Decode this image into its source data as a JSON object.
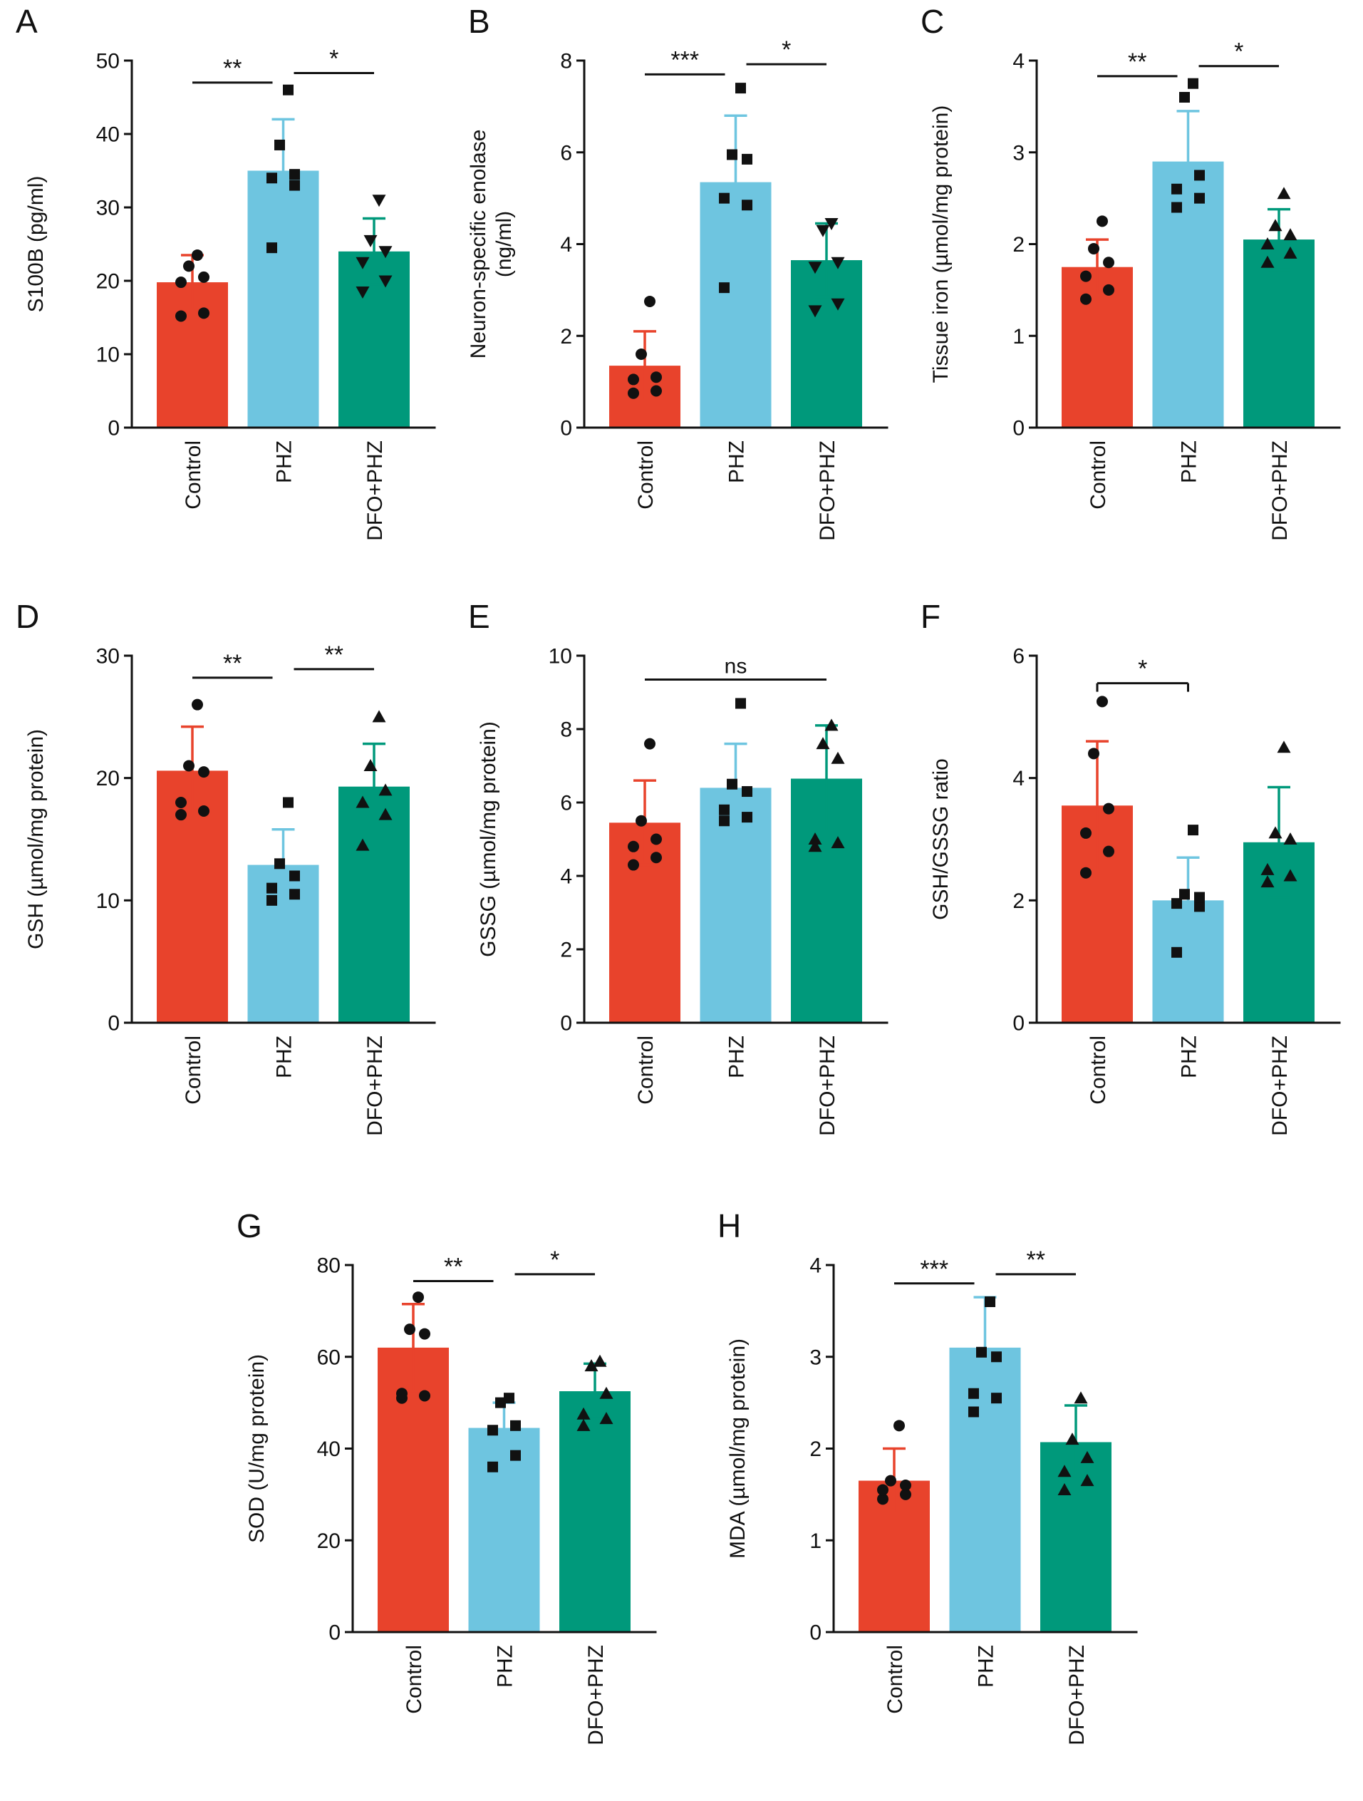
{
  "figure": {
    "background": "#ffffff"
  },
  "colors": {
    "axis": "#111111",
    "points": "#111111",
    "control": "#E8432C",
    "phz": "#6EC5E0",
    "dfo_phz": "#00997B"
  },
  "chart_data": [
    {
      "letter": "A",
      "type": "bar",
      "ylabel_lines": [
        "S100B (pg/ml)"
      ],
      "ylim": [
        0,
        50
      ],
      "yticks": [
        0,
        10,
        20,
        30,
        40,
        50
      ],
      "categories": [
        "Control",
        "PHZ",
        "DFO+PHZ"
      ],
      "group_colors": [
        "#E8432C",
        "#6EC5E0",
        "#00997B"
      ],
      "group_markers": [
        "circle",
        "square",
        "triangle-down"
      ],
      "means": [
        19.8,
        35,
        24
      ],
      "sd": [
        3.7,
        7,
        4.5
      ],
      "points": [
        [
          15.2,
          15.6,
          19.8,
          20.5,
          22,
          23.5
        ],
        [
          24.5,
          33,
          34,
          34.5,
          38.5,
          46
        ],
        [
          18.5,
          20,
          22.5,
          24,
          25.5,
          31
        ]
      ],
      "significance": [
        {
          "from": 0,
          "to": 1,
          "label": "**",
          "y": 47
        },
        {
          "from": 1,
          "to": 2,
          "label": "*",
          "y": 48.3
        }
      ]
    },
    {
      "letter": "B",
      "type": "bar",
      "ylabel_lines": [
        "Neuron-specific enolase",
        "(ng/ml)"
      ],
      "ylim": [
        0,
        8
      ],
      "yticks": [
        0,
        2,
        4,
        6,
        8
      ],
      "categories": [
        "Control",
        "PHZ",
        "DFO+PHZ"
      ],
      "group_colors": [
        "#E8432C",
        "#6EC5E0",
        "#00997B"
      ],
      "group_markers": [
        "circle",
        "square",
        "triangle-down"
      ],
      "means": [
        1.35,
        5.35,
        3.65
      ],
      "sd": [
        0.75,
        1.45,
        0.8
      ],
      "points": [
        [
          0.75,
          0.8,
          1.05,
          1.1,
          1.6,
          2.75
        ],
        [
          3.05,
          4.85,
          5.0,
          5.85,
          5.95,
          7.4
        ],
        [
          2.55,
          2.7,
          3.5,
          3.6,
          4.3,
          4.45
        ]
      ],
      "significance": [
        {
          "from": 0,
          "to": 1,
          "label": "***",
          "y": 7.7
        },
        {
          "from": 1,
          "to": 2,
          "label": "*",
          "y": 7.92
        }
      ]
    },
    {
      "letter": "C",
      "type": "bar",
      "ylabel_lines": [
        "Tissue iron (µmol/mg protein)"
      ],
      "ylim": [
        0,
        4
      ],
      "yticks": [
        0,
        1,
        2,
        3,
        4
      ],
      "categories": [
        "Control",
        "PHZ",
        "DFO+PHZ"
      ],
      "group_colors": [
        "#E8432C",
        "#6EC5E0",
        "#00997B"
      ],
      "group_markers": [
        "circle",
        "square",
        "triangle-up"
      ],
      "means": [
        1.75,
        2.9,
        2.05
      ],
      "sd": [
        0.3,
        0.55,
        0.33
      ],
      "points": [
        [
          1.4,
          1.5,
          1.65,
          1.8,
          1.95,
          2.25
        ],
        [
          2.4,
          2.5,
          2.6,
          2.75,
          3.6,
          3.75
        ],
        [
          1.8,
          1.9,
          2.0,
          2.1,
          2.2,
          2.55
        ]
      ],
      "significance": [
        {
          "from": 0,
          "to": 1,
          "label": "**",
          "y": 3.83
        },
        {
          "from": 1,
          "to": 2,
          "label": "*",
          "y": 3.94
        }
      ]
    },
    {
      "letter": "D",
      "type": "bar",
      "ylabel_lines": [
        "GSH (µmol/mg protein)"
      ],
      "ylim": [
        0,
        30
      ],
      "yticks": [
        0,
        10,
        20,
        30
      ],
      "categories": [
        "Control",
        "PHZ",
        "DFO+PHZ"
      ],
      "group_colors": [
        "#E8432C",
        "#6EC5E0",
        "#00997B"
      ],
      "group_markers": [
        "circle",
        "square",
        "triangle-up"
      ],
      "means": [
        20.6,
        12.9,
        19.3
      ],
      "sd": [
        3.6,
        2.9,
        3.5
      ],
      "points": [
        [
          17,
          17.3,
          18,
          20.5,
          21,
          26
        ],
        [
          10,
          10.5,
          11,
          12,
          13,
          18
        ],
        [
          14.5,
          17,
          18,
          19,
          21,
          25
        ]
      ],
      "significance": [
        {
          "from": 0,
          "to": 1,
          "label": "**",
          "y": 28.2
        },
        {
          "from": 1,
          "to": 2,
          "label": "**",
          "y": 28.9
        }
      ]
    },
    {
      "letter": "E",
      "type": "bar",
      "ylabel_lines": [
        "GSSG (µmol/mg protein)"
      ],
      "ylim": [
        0,
        10
      ],
      "yticks": [
        0,
        2,
        4,
        6,
        8,
        10
      ],
      "categories": [
        "Control",
        "PHZ",
        "DFO+PHZ"
      ],
      "group_colors": [
        "#E8432C",
        "#6EC5E0",
        "#00997B"
      ],
      "group_markers": [
        "circle",
        "square",
        "triangle-up"
      ],
      "means": [
        5.45,
        6.4,
        6.65
      ],
      "sd": [
        1.15,
        1.2,
        1.45
      ],
      "points": [
        [
          4.3,
          4.5,
          4.8,
          5.0,
          5.5,
          7.6
        ],
        [
          5.5,
          5.6,
          5.8,
          6.3,
          6.5,
          8.7
        ],
        [
          4.8,
          4.9,
          5.0,
          7.2,
          7.6,
          8.1
        ]
      ],
      "significance": [
        {
          "from": 0,
          "to": 2,
          "label": "ns",
          "y": 9.35
        }
      ]
    },
    {
      "letter": "F",
      "type": "bar",
      "ylabel_lines": [
        "GSH/GSSG ratio"
      ],
      "ylim": [
        0,
        6
      ],
      "yticks": [
        0,
        2,
        4,
        6
      ],
      "categories": [
        "Control",
        "PHZ",
        "DFO+PHZ"
      ],
      "group_colors": [
        "#E8432C",
        "#6EC5E0",
        "#00997B"
      ],
      "group_markers": [
        "circle",
        "square",
        "triangle-up"
      ],
      "means": [
        3.55,
        2.0,
        2.95
      ],
      "sd": [
        1.05,
        0.7,
        0.9
      ],
      "points": [
        [
          2.45,
          2.8,
          3.1,
          3.5,
          4.4,
          5.25
        ],
        [
          1.15,
          1.9,
          1.95,
          2.05,
          2.1,
          3.15
        ],
        [
          2.3,
          2.4,
          2.5,
          3.0,
          3.1,
          4.5
        ]
      ],
      "significance": [
        {
          "from": 0,
          "to": 1,
          "label": "*",
          "y": 5.55,
          "drop": 12
        }
      ]
    },
    {
      "letter": "G",
      "type": "bar",
      "ylabel_lines": [
        "SOD (U/mg protein)"
      ],
      "ylim": [
        0,
        80
      ],
      "yticks": [
        0,
        20,
        40,
        60,
        80
      ],
      "categories": [
        "Control",
        "PHZ",
        "DFO+PHZ"
      ],
      "group_colors": [
        "#E8432C",
        "#6EC5E0",
        "#00997B"
      ],
      "group_markers": [
        "circle",
        "square",
        "triangle-up"
      ],
      "means": [
        62,
        44.5,
        52.5
      ],
      "sd": [
        9.5,
        5.5,
        6
      ],
      "points": [
        [
          51,
          51.5,
          52,
          65,
          66,
          73
        ],
        [
          36,
          38.5,
          44,
          45,
          50,
          51
        ],
        [
          45,
          46.5,
          47.5,
          52,
          58,
          59
        ]
      ],
      "significance": [
        {
          "from": 0,
          "to": 1,
          "label": "**",
          "y": 76.5
        },
        {
          "from": 1,
          "to": 2,
          "label": "*",
          "y": 78
        }
      ]
    },
    {
      "letter": "H",
      "type": "bar",
      "ylabel_lines": [
        "MDA (µmol/mg protein)"
      ],
      "ylim": [
        0,
        4
      ],
      "yticks": [
        0,
        1,
        2,
        3,
        4
      ],
      "categories": [
        "Control",
        "PHZ",
        "DFO+PHZ"
      ],
      "group_colors": [
        "#E8432C",
        "#6EC5E0",
        "#00997B"
      ],
      "group_markers": [
        "circle",
        "square",
        "triangle-up"
      ],
      "means": [
        1.65,
        3.1,
        2.07
      ],
      "sd": [
        0.35,
        0.55,
        0.4
      ],
      "points": [
        [
          1.45,
          1.5,
          1.55,
          1.6,
          1.65,
          2.25
        ],
        [
          2.4,
          2.55,
          2.6,
          3.0,
          3.05,
          3.6
        ],
        [
          1.55,
          1.65,
          1.75,
          1.9,
          2.1,
          2.55
        ]
      ],
      "significance": [
        {
          "from": 0,
          "to": 1,
          "label": "***",
          "y": 3.8
        },
        {
          "from": 1,
          "to": 2,
          "label": "**",
          "y": 3.9
        }
      ]
    }
  ]
}
